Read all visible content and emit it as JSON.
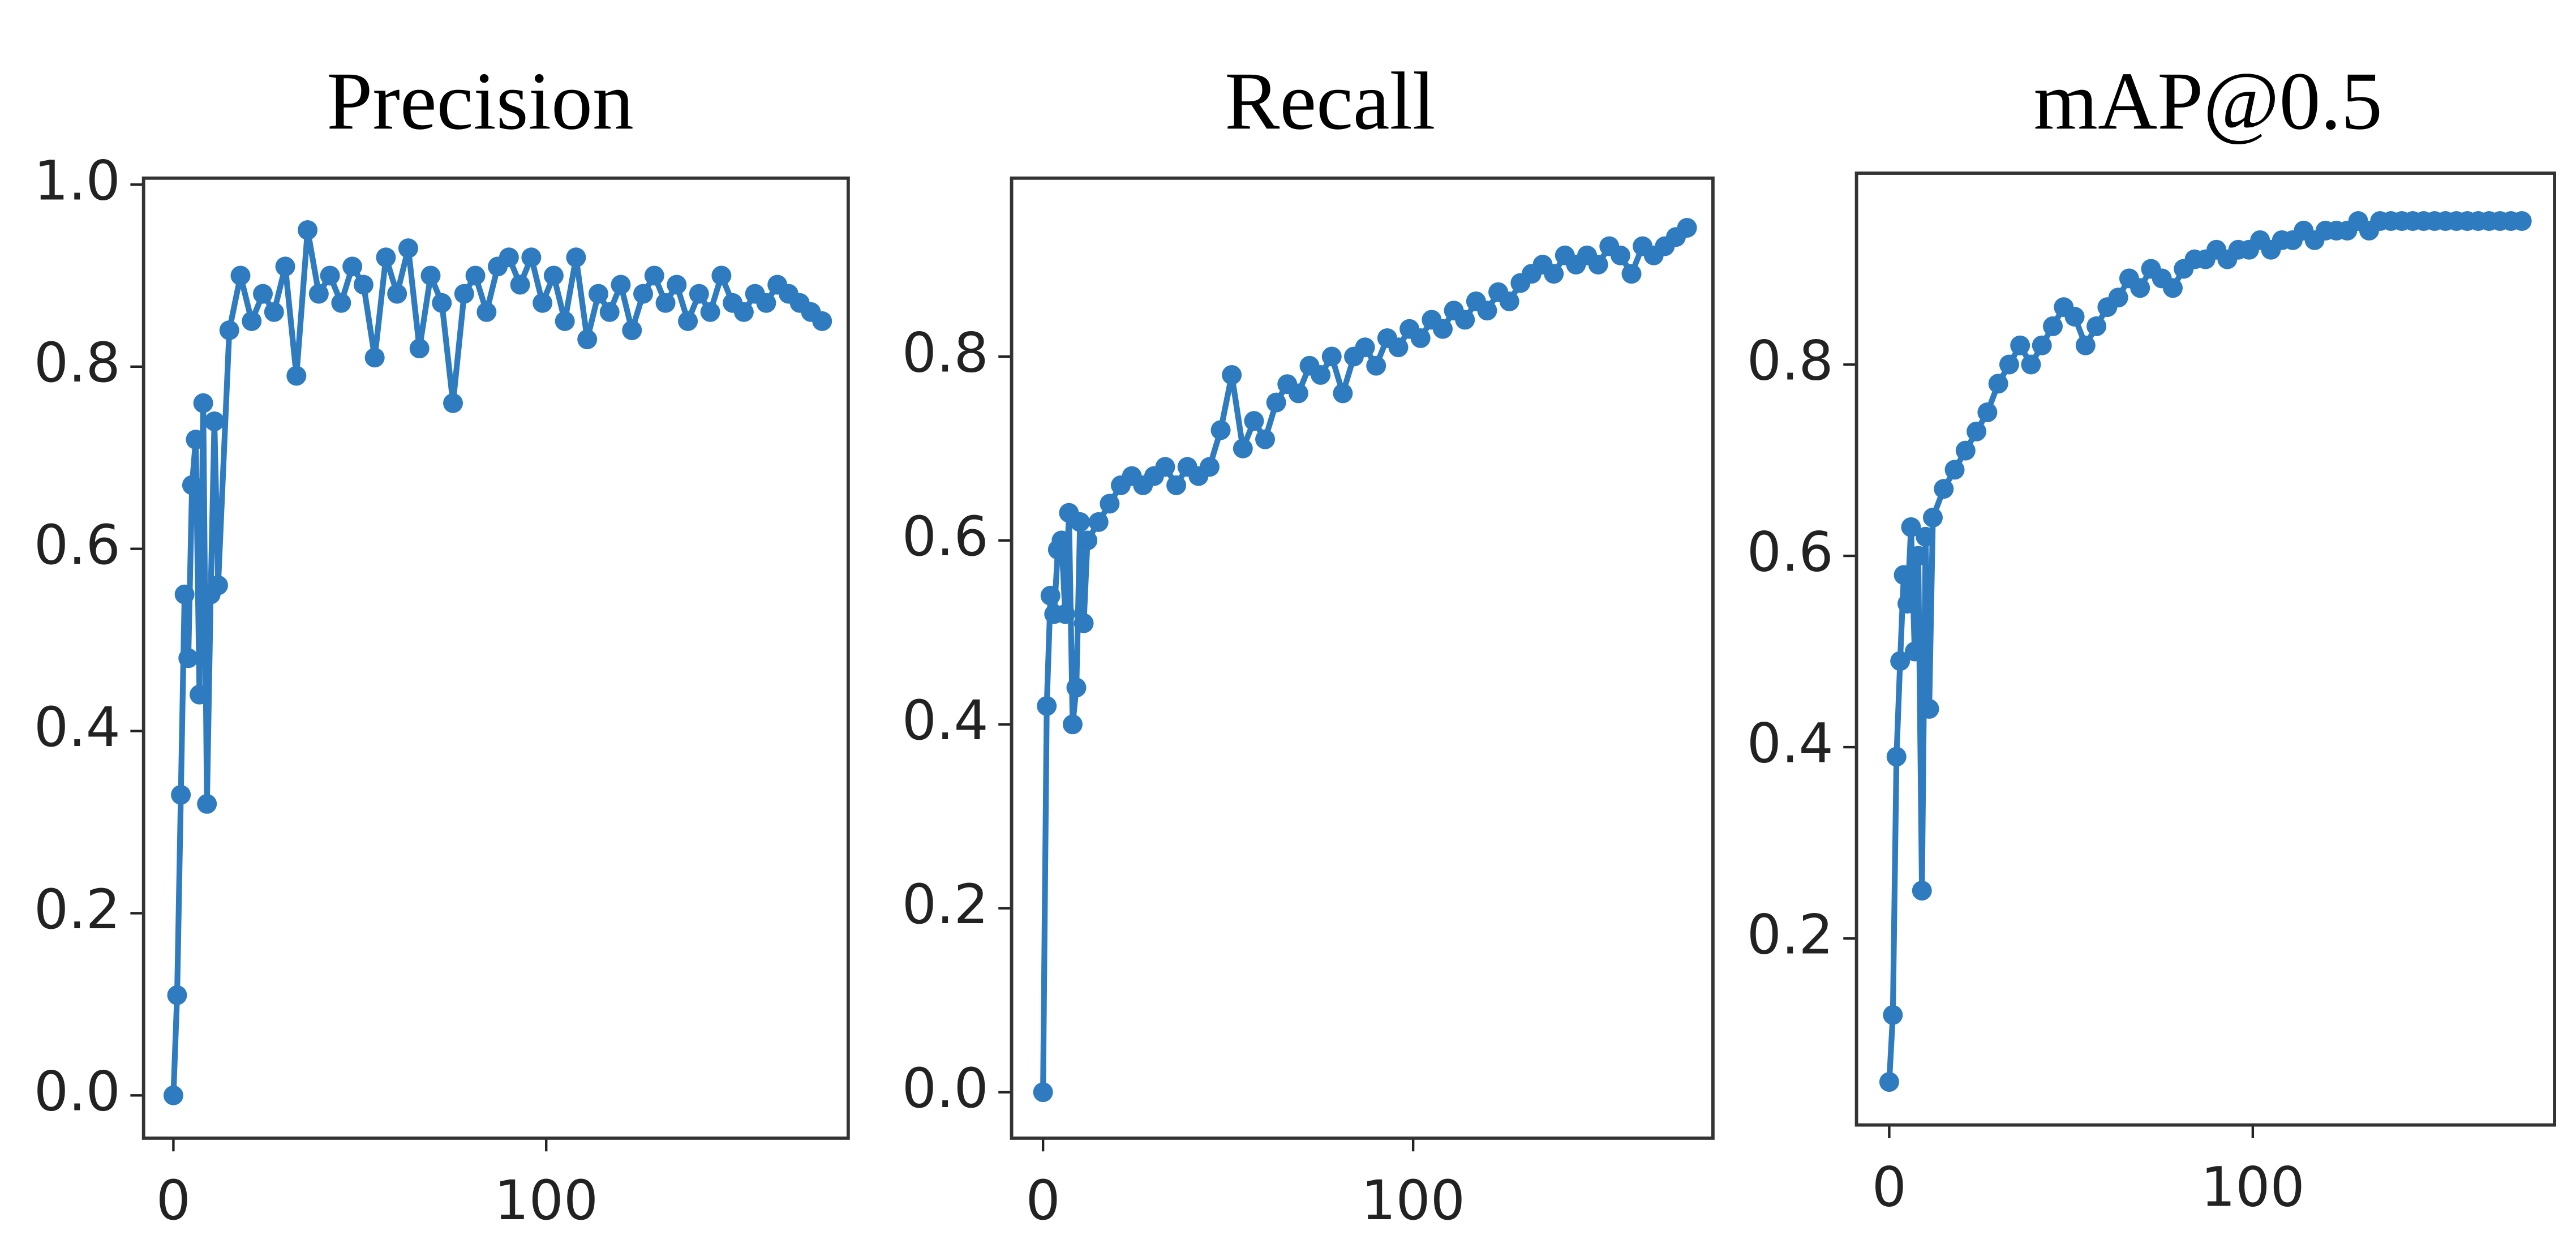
{
  "chart_data": [
    {
      "type": "line",
      "title": "Precision",
      "color": "#2f7bbf",
      "x": [
        0,
        1,
        2,
        3,
        4,
        5,
        6,
        7,
        8,
        9,
        10,
        11,
        12,
        15,
        18,
        21,
        24,
        27,
        30,
        33,
        36,
        39,
        42,
        45,
        48,
        51,
        54,
        57,
        60,
        63,
        66,
        69,
        72,
        75,
        78,
        81,
        84,
        87,
        90,
        93,
        96,
        99,
        102,
        105,
        108,
        111,
        114,
        117,
        120,
        123,
        126,
        129,
        132,
        135,
        138,
        141,
        144,
        147,
        150,
        153,
        156,
        159,
        162,
        165,
        168,
        171,
        174
      ],
      "values": [
        0.0,
        0.11,
        0.33,
        0.55,
        0.48,
        0.67,
        0.72,
        0.44,
        0.76,
        0.32,
        0.55,
        0.74,
        0.56,
        0.84,
        0.9,
        0.85,
        0.88,
        0.86,
        0.91,
        0.79,
        0.95,
        0.88,
        0.9,
        0.87,
        0.91,
        0.89,
        0.81,
        0.92,
        0.88,
        0.93,
        0.82,
        0.9,
        0.87,
        0.76,
        0.88,
        0.9,
        0.86,
        0.91,
        0.92,
        0.89,
        0.92,
        0.87,
        0.9,
        0.85,
        0.92,
        0.83,
        0.88,
        0.86,
        0.89,
        0.84,
        0.88,
        0.9,
        0.87,
        0.89,
        0.85,
        0.88,
        0.86,
        0.9,
        0.87,
        0.86,
        0.88,
        0.87,
        0.89,
        0.88,
        0.87,
        0.86,
        0.85
      ],
      "xlim": [
        -8,
        181
      ],
      "xticks": [
        0,
        100
      ],
      "ylim": [
        -0.047,
        1.007
      ],
      "yticks": [
        {
          "value": 0,
          "label": "0.0"
        },
        0.2,
        0.4,
        0.6,
        0.8,
        {
          "value": 1,
          "label": "1.0"
        }
      ]
    },
    {
      "type": "line",
      "title": "Recall",
      "color": "#2f7bbf",
      "x": [
        0,
        1,
        2,
        3,
        4,
        5,
        6,
        7,
        8,
        9,
        10,
        11,
        12,
        15,
        18,
        21,
        24,
        27,
        30,
        33,
        36,
        39,
        42,
        45,
        48,
        51,
        54,
        57,
        60,
        63,
        66,
        69,
        72,
        75,
        78,
        81,
        84,
        87,
        90,
        93,
        96,
        99,
        102,
        105,
        108,
        111,
        114,
        117,
        120,
        123,
        126,
        129,
        132,
        135,
        138,
        141,
        144,
        147,
        150,
        153,
        156,
        159,
        162,
        165,
        168,
        171,
        174
      ],
      "values": [
        0.0,
        0.42,
        0.54,
        0.52,
        0.59,
        0.6,
        0.52,
        0.63,
        0.4,
        0.44,
        0.62,
        0.51,
        0.6,
        0.62,
        0.64,
        0.66,
        0.67,
        0.66,
        0.67,
        0.68,
        0.66,
        0.68,
        0.67,
        0.68,
        0.72,
        0.78,
        0.7,
        0.73,
        0.71,
        0.75,
        0.77,
        0.76,
        0.79,
        0.78,
        0.8,
        0.76,
        0.8,
        0.81,
        0.79,
        0.82,
        0.81,
        0.83,
        0.82,
        0.84,
        0.83,
        0.85,
        0.84,
        0.86,
        0.85,
        0.87,
        0.86,
        0.88,
        0.89,
        0.9,
        0.89,
        0.91,
        0.9,
        0.91,
        0.9,
        0.92,
        0.91,
        0.89,
        0.92,
        0.91,
        0.92,
        0.93,
        0.94
      ],
      "xlim": [
        -8.5,
        181
      ],
      "xticks": [
        0,
        100
      ],
      "ylim": [
        -0.05,
        0.994
      ],
      "yticks": [
        {
          "value": 0,
          "label": "0.0"
        },
        0.2,
        0.4,
        0.6,
        0.8
      ]
    },
    {
      "type": "line",
      "title": "mAP@0.5",
      "color": "#2f7bbf",
      "x": [
        0,
        1,
        2,
        3,
        4,
        5,
        6,
        7,
        8,
        9,
        10,
        11,
        12,
        15,
        18,
        21,
        24,
        27,
        30,
        33,
        36,
        39,
        42,
        45,
        48,
        51,
        54,
        57,
        60,
        63,
        66,
        69,
        72,
        75,
        78,
        81,
        84,
        87,
        90,
        93,
        96,
        99,
        102,
        105,
        108,
        111,
        114,
        117,
        120,
        123,
        126,
        129,
        132,
        135,
        138,
        141,
        144,
        147,
        150,
        153,
        156,
        159,
        162,
        165,
        168,
        171,
        174
      ],
      "values": [
        0.05,
        0.12,
        0.39,
        0.49,
        0.58,
        0.55,
        0.63,
        0.5,
        0.6,
        0.25,
        0.62,
        0.44,
        0.64,
        0.67,
        0.69,
        0.71,
        0.73,
        0.75,
        0.78,
        0.8,
        0.82,
        0.8,
        0.82,
        0.84,
        0.86,
        0.85,
        0.82,
        0.84,
        0.86,
        0.87,
        0.89,
        0.88,
        0.9,
        0.89,
        0.88,
        0.9,
        0.91,
        0.91,
        0.92,
        0.91,
        0.92,
        0.92,
        0.93,
        0.92,
        0.93,
        0.93,
        0.94,
        0.93,
        0.94,
        0.94,
        0.94,
        0.95,
        0.94,
        0.95,
        0.95,
        0.95,
        0.95,
        0.95,
        0.95,
        0.95,
        0.95,
        0.95,
        0.95,
        0.95,
        0.95,
        0.95,
        0.95
      ],
      "xlim": [
        -9,
        183
      ],
      "xticks": [
        0,
        100
      ],
      "ylim": [
        0.005,
        1.0
      ],
      "yticks": [
        0.2,
        0.4,
        0.6,
        0.8
      ]
    }
  ]
}
